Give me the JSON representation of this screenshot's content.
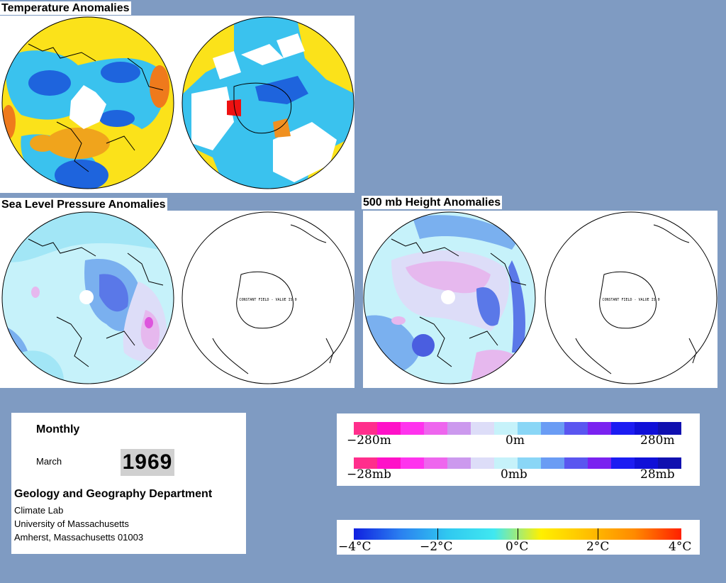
{
  "titles": {
    "temperature": "Temperature Anomalies",
    "slp": "Sea Level Pressure Anomalies",
    "height": "500 mb Height Anomalies"
  },
  "map_note": "CONSTANT FIELD - VALUE IS 0",
  "info": {
    "period": "Monthly",
    "month": "March",
    "year": "1969",
    "department": "Geology and Geography Department",
    "lab": "Climate Lab",
    "university": "University of Massachusetts",
    "address": "Amherst, Massachusetts 01003"
  },
  "legends": {
    "height": {
      "labels": [
        "−280m",
        "0m",
        "280m"
      ],
      "colors": [
        "#ff2e8c",
        "#ff11c8",
        "#ff33ee",
        "#ee66ee",
        "#cc99ee",
        "#ddddf8",
        "#c6f2fa",
        "#8ad6f6",
        "#6a9cf4",
        "#5a56f0",
        "#7a22f0",
        "#1c1cf2",
        "#1010d8",
        "#1010b0"
      ]
    },
    "pressure": {
      "labels": [
        "−28mb",
        "0mb",
        "28mb"
      ],
      "colors": [
        "#ff2e8c",
        "#ff11c8",
        "#ff33ee",
        "#ee66ee",
        "#cc99ee",
        "#ddddf8",
        "#c6f2fa",
        "#8ad6f6",
        "#6a9cf4",
        "#5a56f0",
        "#7a22f0",
        "#1c1cf2",
        "#1010d8",
        "#1010b0"
      ]
    },
    "temperature": {
      "labels": [
        "−4°C",
        "−2°C",
        "0°C",
        "2°C",
        "4°C"
      ],
      "stops": [
        "#1020e0",
        "#2a80f0",
        "#30c8f0",
        "#40e8f0",
        "#fff000",
        "#ffc000",
        "#ff8a00",
        "#ff2000"
      ]
    }
  }
}
